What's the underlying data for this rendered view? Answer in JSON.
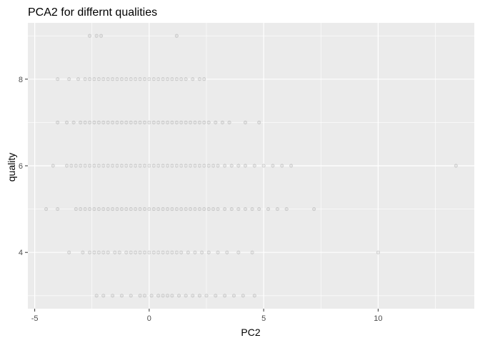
{
  "chart_data": {
    "type": "scatter",
    "title": "PCA2 for differnt qualities",
    "xlabel": "PC2",
    "ylabel": "quality",
    "xlim": [
      -5.3,
      14.2
    ],
    "ylim": [
      2.7,
      9.3
    ],
    "xticks": [
      -5,
      0,
      5,
      10
    ],
    "yticks": [
      4,
      6,
      8
    ],
    "grid": true,
    "point_color": "#000000",
    "panel_background": "#EBEBEB",
    "grid_color": "#FFFFFF",
    "series": [
      {
        "y": 3,
        "x": [
          -2.3,
          -2.0,
          -1.6,
          -1.2,
          -0.8,
          -0.4,
          -0.2,
          0.1,
          0.4,
          0.6,
          0.8,
          1.0,
          1.3,
          1.6,
          1.9,
          2.2,
          2.5,
          2.9,
          3.3,
          3.7,
          4.1,
          4.6
        ]
      },
      {
        "y": 4,
        "x": [
          -3.5,
          -2.9,
          -2.6,
          -2.4,
          -2.2,
          -2.0,
          -1.8,
          -1.5,
          -1.3,
          -1.0,
          -0.8,
          -0.6,
          -0.4,
          -0.2,
          0.0,
          0.2,
          0.4,
          0.6,
          0.8,
          1.0,
          1.2,
          1.4,
          1.7,
          2.0,
          2.3,
          2.6,
          3.0,
          3.4,
          3.9,
          4.5,
          10.0
        ]
      },
      {
        "y": 5,
        "x": [
          -4.5,
          -4.0,
          -3.2,
          -3.0,
          -2.8,
          -2.6,
          -2.4,
          -2.2,
          -2.0,
          -1.8,
          -1.6,
          -1.4,
          -1.2,
          -1.0,
          -0.8,
          -0.6,
          -0.4,
          -0.2,
          0.0,
          0.2,
          0.4,
          0.6,
          0.8,
          1.0,
          1.2,
          1.4,
          1.6,
          1.8,
          2.0,
          2.2,
          2.4,
          2.6,
          2.8,
          3.0,
          3.3,
          3.6,
          3.9,
          4.2,
          4.5,
          4.8,
          5.2,
          5.6,
          6.0,
          7.2
        ]
      },
      {
        "y": 6,
        "x": [
          -4.2,
          -3.6,
          -3.4,
          -3.2,
          -3.0,
          -2.8,
          -2.6,
          -2.4,
          -2.2,
          -2.0,
          -1.8,
          -1.6,
          -1.4,
          -1.2,
          -1.0,
          -0.8,
          -0.6,
          -0.4,
          -0.2,
          0.0,
          0.2,
          0.4,
          0.6,
          0.8,
          1.0,
          1.2,
          1.4,
          1.6,
          1.8,
          2.0,
          2.2,
          2.4,
          2.6,
          2.8,
          3.0,
          3.3,
          3.6,
          3.9,
          4.2,
          4.6,
          5.0,
          5.4,
          5.8,
          6.2,
          13.4
        ]
      },
      {
        "y": 7,
        "x": [
          -4.0,
          -3.6,
          -3.3,
          -3.0,
          -2.8,
          -2.6,
          -2.4,
          -2.2,
          -2.0,
          -1.8,
          -1.6,
          -1.4,
          -1.2,
          -1.0,
          -0.8,
          -0.6,
          -0.4,
          -0.2,
          0.0,
          0.2,
          0.4,
          0.6,
          0.8,
          1.0,
          1.2,
          1.4,
          1.6,
          1.8,
          2.0,
          2.2,
          2.4,
          2.6,
          2.9,
          3.2,
          3.5,
          4.2,
          4.8
        ]
      },
      {
        "y": 8,
        "x": [
          -4.0,
          -3.5,
          -3.1,
          -2.8,
          -2.6,
          -2.4,
          -2.2,
          -2.0,
          -1.8,
          -1.6,
          -1.4,
          -1.2,
          -1.0,
          -0.8,
          -0.6,
          -0.4,
          -0.2,
          0.0,
          0.2,
          0.4,
          0.6,
          0.8,
          1.0,
          1.2,
          1.4,
          1.6,
          1.9,
          2.2,
          2.4
        ]
      },
      {
        "y": 9,
        "x": [
          -2.6,
          -2.3,
          -2.1,
          1.2
        ]
      }
    ]
  }
}
